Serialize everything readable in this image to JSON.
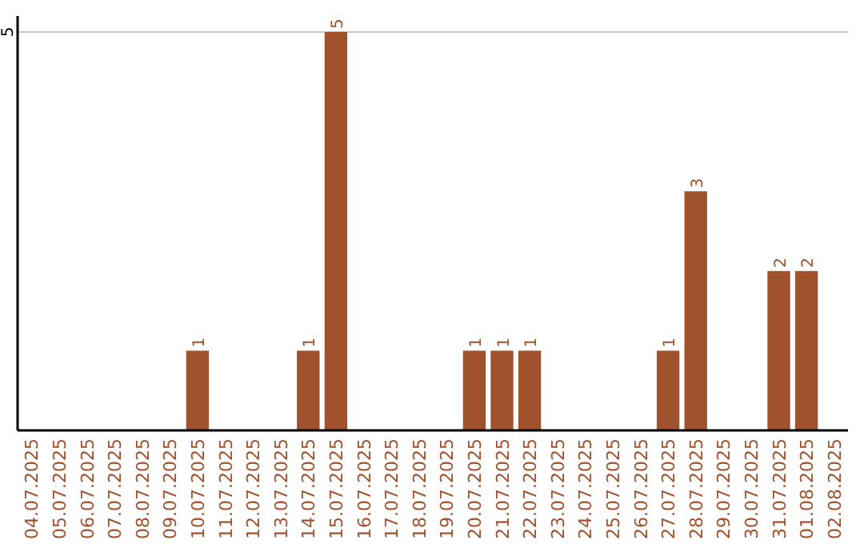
{
  "chart_data": {
    "type": "bar",
    "categories": [
      "04.07.2025",
      "05.07.2025",
      "06.07.2025",
      "07.07.2025",
      "08.07.2025",
      "09.07.2025",
      "10.07.2025",
      "11.07.2025",
      "12.07.2025",
      "13.07.2025",
      "14.07.2025",
      "15.07.2025",
      "16.07.2025",
      "17.07.2025",
      "18.07.2025",
      "19.07.2025",
      "20.07.2025",
      "21.07.2025",
      "22.07.2025",
      "23.07.2025",
      "24.07.2025",
      "25.07.2025",
      "26.07.2025",
      "27.07.2025",
      "28.07.2025",
      "29.07.2025",
      "30.07.2025",
      "31.07.2025",
      "01.08.2025",
      "02.08.2025"
    ],
    "values": [
      0,
      0,
      0,
      0,
      0,
      0,
      1,
      0,
      0,
      0,
      1,
      5,
      0,
      0,
      0,
      0,
      1,
      1,
      1,
      0,
      0,
      0,
      0,
      1,
      3,
      0,
      0,
      2,
      2,
      0
    ],
    "value_labels": [
      null,
      null,
      null,
      null,
      null,
      null,
      "1",
      null,
      null,
      null,
      "1",
      "5",
      null,
      null,
      null,
      null,
      "1",
      "1",
      "1",
      null,
      null,
      null,
      null,
      "1",
      "3",
      null,
      null,
      "2",
      "2",
      null
    ],
    "color": "#a0522d",
    "ylim": [
      0,
      5.2
    ],
    "yticks": [
      5
    ],
    "grid": "y"
  }
}
